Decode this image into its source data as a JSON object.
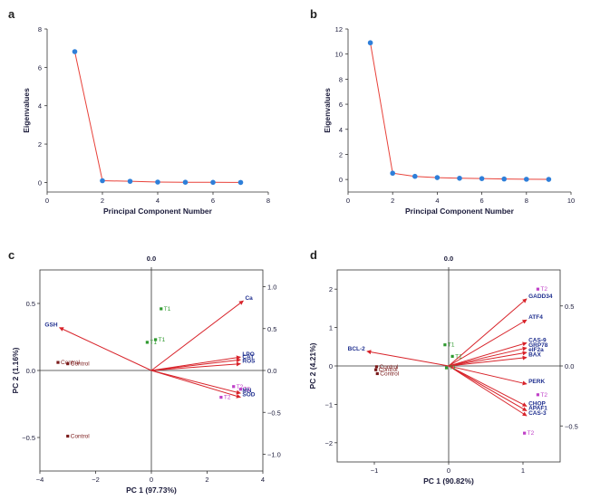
{
  "panels": {
    "a": "a",
    "b": "b",
    "c": "c",
    "d": "d"
  },
  "colors": {
    "point": "#2e7fd9",
    "line": "#e8423a",
    "arrow": "#d8232a",
    "var_label": "#1f2f8f",
    "control": "#7a1a1a",
    "t1": "#2f9a2f",
    "t2": "#c040c8"
  },
  "chart_data": [
    {
      "id": "a",
      "type": "line",
      "xlabel": "Principal Component Number",
      "ylabel": "Eigenvalues",
      "xlim": [
        0,
        8
      ],
      "ylim": [
        -0.5,
        8
      ],
      "xticks": [
        0,
        2,
        4,
        6,
        8
      ],
      "xtick_labels": [
        "0",
        "2",
        "4",
        "6",
        "8"
      ],
      "yticks": [
        0,
        2,
        4,
        6,
        8
      ],
      "ytick_labels": [
        "0",
        "2",
        "4",
        "6",
        "8"
      ],
      "x": [
        1,
        2,
        3,
        4,
        5,
        6,
        7
      ],
      "y": [
        6.82,
        0.09,
        0.06,
        0.02,
        0.01,
        0.005,
        0.0
      ]
    },
    {
      "id": "b",
      "type": "line",
      "xlabel": "Principal Component Number",
      "ylabel": "Eigenvalues",
      "xlim": [
        0,
        10
      ],
      "ylim": [
        -1,
        12
      ],
      "xticks": [
        0,
        2,
        4,
        6,
        8,
        10
      ],
      "xtick_labels": [
        "0",
        "2",
        "4",
        "6",
        "8",
        "10"
      ],
      "yticks": [
        0,
        2,
        4,
        6,
        8,
        10,
        12
      ],
      "ytick_labels": [
        "0",
        "2",
        "4",
        "6",
        "8",
        "10",
        "12"
      ],
      "x": [
        1,
        2,
        3,
        4,
        5,
        6,
        7,
        8,
        9
      ],
      "y": [
        10.9,
        0.5,
        0.25,
        0.15,
        0.1,
        0.07,
        0.04,
        0.02,
        0.01
      ]
    },
    {
      "id": "c",
      "type": "scatter",
      "title": "0.0",
      "xlabel": "PC 1 (97.73%)",
      "ylabel": "PC 2 (1.16%)",
      "xlim": [
        -4,
        4
      ],
      "ylim": [
        -0.75,
        0.75
      ],
      "xticks": [
        -4,
        -2,
        0,
        2,
        4
      ],
      "xtick_labels": [
        "−4",
        "−2",
        "0",
        "2",
        "4"
      ],
      "yticks": [
        -0.5,
        0.0,
        0.5
      ],
      "ytick_labels": [
        "−0.5",
        "0.0",
        "0.5"
      ],
      "right_ticks": [
        1.0,
        0.5,
        0.0,
        -0.5,
        -1.0
      ],
      "right_tick_labels": [
        "1.0",
        "0.5",
        "0.0",
        "−0.5",
        "−1.0"
      ],
      "right_lim": [
        -1.2,
        1.2
      ],
      "loadings": [
        {
          "label": "Ca",
          "x": 3.3,
          "y": 0.52
        },
        {
          "label": "GSH",
          "x": -3.3,
          "y": 0.32
        },
        {
          "label": "LPO",
          "x": 3.2,
          "y": 0.1
        },
        {
          "label": "CAT",
          "x": 3.2,
          "y": 0.08
        },
        {
          "label": "ROS",
          "x": 3.2,
          "y": 0.05
        },
        {
          "label": "MN",
          "x": 3.2,
          "y": -0.17
        },
        {
          "label": "SOD",
          "x": 3.2,
          "y": -0.2
        }
      ],
      "scores": [
        {
          "label": "Control",
          "group": "control",
          "x": -3.35,
          "y": 0.06
        },
        {
          "label": "Control",
          "group": "control",
          "x": -3.0,
          "y": 0.05
        },
        {
          "label": "Control",
          "group": "control",
          "x": -3.0,
          "y": -0.49
        },
        {
          "label": "T1",
          "group": "t1",
          "x": 0.35,
          "y": 0.46
        },
        {
          "label": "T1",
          "group": "t1",
          "x": -0.15,
          "y": 0.21
        },
        {
          "label": "T1",
          "group": "t1",
          "x": 0.15,
          "y": 0.23
        },
        {
          "label": "T2",
          "group": "t2",
          "x": 2.95,
          "y": -0.12
        },
        {
          "label": "T2",
          "group": "t2",
          "x": 3.2,
          "y": -0.14
        },
        {
          "label": "T2",
          "group": "t2",
          "x": 2.5,
          "y": -0.2
        }
      ]
    },
    {
      "id": "d",
      "type": "scatter",
      "title": "0.0",
      "xlabel": "PC 1 (90.82%)",
      "ylabel": "PC 2 (4.21%)",
      "xlim": [
        -1.5,
        1.5
      ],
      "ylim": [
        -2.5,
        2.5
      ],
      "xticks": [
        -1,
        0,
        1
      ],
      "xtick_labels": [
        "−1",
        "0",
        "1"
      ],
      "yticks": [
        -2,
        -1,
        0,
        1,
        2
      ],
      "ytick_labels": [
        "−2",
        "−1",
        "0",
        "1",
        "2"
      ],
      "right_ticks": [
        0.5,
        0.0,
        -0.5
      ],
      "right_tick_labels": [
        "0.5",
        "0.0",
        "−0.5"
      ],
      "right_lim": [
        -0.8,
        0.8
      ],
      "loadings": [
        {
          "label": "GADD34",
          "x": 1.05,
          "y": 1.75
        },
        {
          "label": "ATF4",
          "x": 1.05,
          "y": 1.2
        },
        {
          "label": "CAS-9",
          "x": 1.05,
          "y": 0.6
        },
        {
          "label": "GRP78",
          "x": 1.05,
          "y": 0.47
        },
        {
          "label": "eIF2a",
          "x": 1.05,
          "y": 0.35
        },
        {
          "label": "BAX",
          "x": 1.05,
          "y": 0.22
        },
        {
          "label": "BCL-2",
          "x": -1.1,
          "y": 0.38
        },
        {
          "label": "PERK",
          "x": 1.05,
          "y": -0.47
        },
        {
          "label": "CHOP",
          "x": 1.05,
          "y": -1.05
        },
        {
          "label": "APAF1",
          "x": 1.05,
          "y": -1.17
        },
        {
          "label": "CAS-3",
          "x": 1.05,
          "y": -1.3
        }
      ],
      "scores": [
        {
          "label": "T2",
          "group": "t2",
          "x": 1.2,
          "y": 2.0
        },
        {
          "label": "T2",
          "group": "t2",
          "x": 1.2,
          "y": -0.75
        },
        {
          "label": "T2",
          "group": "t2",
          "x": 1.02,
          "y": -1.75
        },
        {
          "label": "Control",
          "group": "control",
          "x": -0.97,
          "y": -0.02
        },
        {
          "label": "Control",
          "group": "control",
          "x": -0.98,
          "y": -0.1
        },
        {
          "label": "Control",
          "group": "control",
          "x": -0.96,
          "y": -0.2
        },
        {
          "label": "T1",
          "group": "t1",
          "x": -0.05,
          "y": 0.55
        },
        {
          "label": "T1",
          "group": "t1",
          "x": 0.05,
          "y": 0.25
        },
        {
          "label": "T1",
          "group": "t1",
          "x": -0.03,
          "y": -0.05
        }
      ]
    }
  ]
}
